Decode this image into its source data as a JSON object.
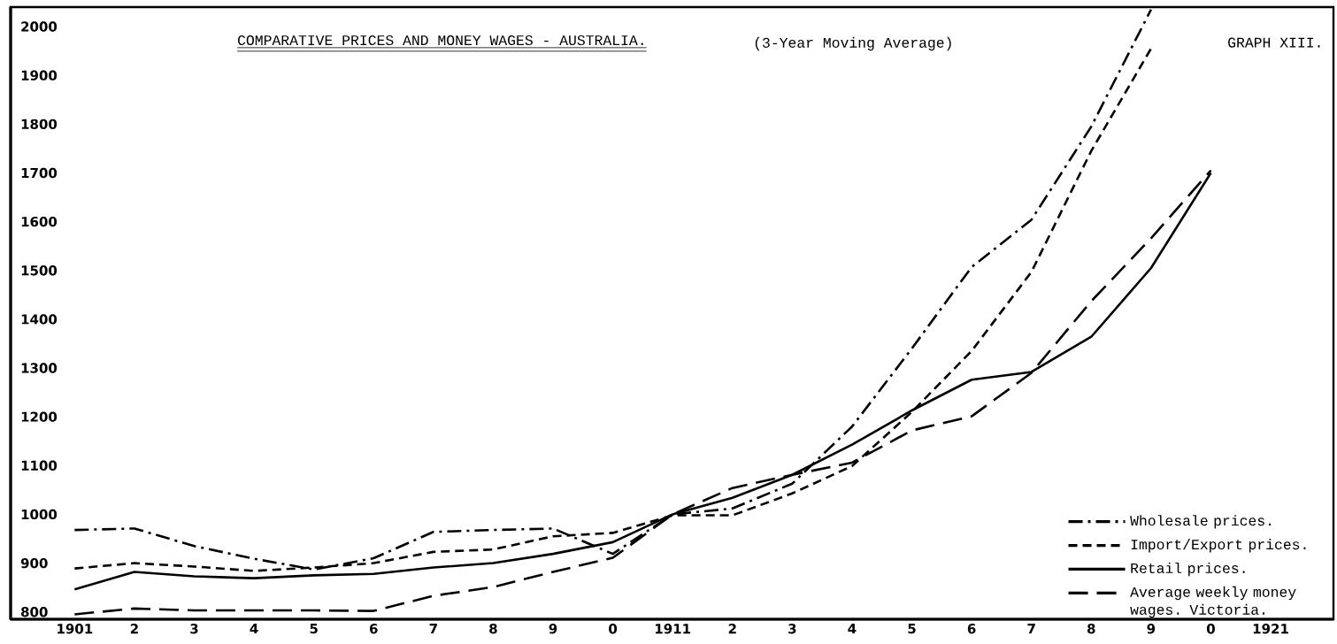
{
  "chart_data": {
    "type": "line",
    "title": "COMPARATIVE PRICES AND MONEY WAGES - AUSTRALIA.",
    "subtitle": "(3-Year Moving Average)",
    "annotations": [
      "GRAPH XIII."
    ],
    "categories": [
      "1901",
      "2",
      "3",
      "4",
      "5",
      "6",
      "7",
      "8",
      "9",
      "0",
      "1911",
      "2",
      "3",
      "4",
      "5",
      "6",
      "7",
      "8",
      "9",
      "0",
      "1921"
    ],
    "ylim": [
      785,
      2040
    ],
    "yticks": [
      800,
      900,
      1000,
      1100,
      1200,
      1300,
      1400,
      1500,
      1600,
      1700,
      1800,
      1900,
      2000
    ],
    "legend": "bottom right",
    "series": [
      {
        "name": "Wholesale prices.",
        "color": "#000000",
        "line_style": "dashdot",
        "values": [
          968,
          971,
          935,
          909,
          887,
          910,
          964,
          968,
          971,
          919,
          1000,
          1012,
          1063,
          1180,
          1340,
          1507,
          1604,
          1795,
          2035,
          null,
          null
        ]
      },
      {
        "name": "Import/Export prices.",
        "color": "#000000",
        "line_style": "dashed",
        "values": [
          889,
          900,
          893,
          884,
          891,
          900,
          923,
          928,
          955,
          962,
          998,
          998,
          1043,
          1099,
          1210,
          1335,
          1497,
          1745,
          1955,
          null,
          null
        ]
      },
      {
        "name": "Retail prices.",
        "color": "#000000",
        "line_style": "solid",
        "values": [
          846,
          882,
          873,
          869,
          875,
          878,
          891,
          900,
          919,
          943,
          1000,
          1034,
          1081,
          1143,
          1213,
          1276,
          1292,
          1364,
          1505,
          1700,
          null
        ]
      },
      {
        "name": "Average weekly money wages. Victoria.",
        "color": "#000000",
        "line_style": "longdashed",
        "values": [
          795,
          807,
          803,
          803,
          803,
          802,
          833,
          851,
          882,
          911,
          1000,
          1054,
          1081,
          1106,
          1172,
          1201,
          1290,
          1437,
          1566,
          1705,
          null
        ]
      }
    ]
  }
}
